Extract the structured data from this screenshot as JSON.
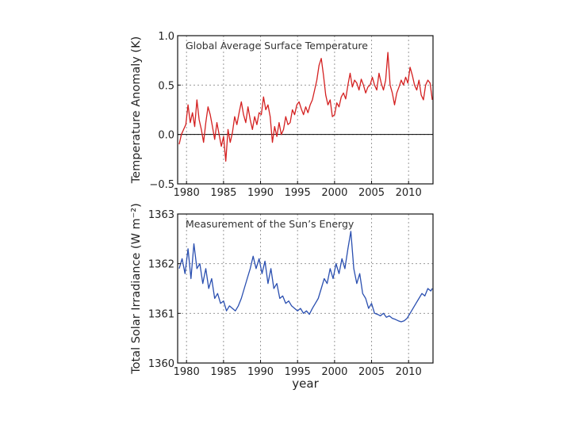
{
  "chart_data": [
    {
      "type": "line",
      "title": "Global Average Surface Temperature",
      "xlabel": "",
      "ylabel": "Temperature Anomaly (K)",
      "xlim": [
        1978.8,
        2013.3
      ],
      "ylim": [
        -0.5,
        1.0
      ],
      "x_ticks": [
        1980,
        1985,
        1990,
        1995,
        2000,
        2005,
        2010
      ],
      "y_ticks": [
        "1.0",
        "0.5",
        "0.0",
        "−0.5"
      ],
      "y_tick_values": [
        1.0,
        0.5,
        0.0,
        -0.5
      ],
      "reference_line": 0.0,
      "grid": true,
      "series": [
        {
          "name": "Temperature Anomaly",
          "color": "#d42020",
          "x": [
            1979.0,
            1979.3,
            1979.6,
            1979.9,
            1980.2,
            1980.5,
            1980.8,
            1981.1,
            1981.4,
            1981.7,
            1982.0,
            1982.3,
            1982.6,
            1982.9,
            1983.2,
            1983.5,
            1983.8,
            1984.1,
            1984.4,
            1984.7,
            1985.0,
            1985.3,
            1985.6,
            1985.9,
            1986.2,
            1986.5,
            1986.8,
            1987.1,
            1987.4,
            1987.7,
            1988.0,
            1988.3,
            1988.6,
            1988.9,
            1989.2,
            1989.5,
            1989.8,
            1990.1,
            1990.4,
            1990.7,
            1991.0,
            1991.3,
            1991.6,
            1991.9,
            1992.2,
            1992.5,
            1992.8,
            1993.1,
            1993.4,
            1993.7,
            1994.0,
            1994.3,
            1994.6,
            1994.9,
            1995.2,
            1995.5,
            1995.8,
            1996.1,
            1996.4,
            1996.7,
            1997.0,
            1997.3,
            1997.6,
            1997.9,
            1998.2,
            1998.5,
            1998.8,
            1999.1,
            1999.4,
            1999.7,
            2000.0,
            2000.3,
            2000.6,
            2000.9,
            2001.2,
            2001.5,
            2001.8,
            2002.1,
            2002.4,
            2002.7,
            2003.0,
            2003.3,
            2003.6,
            2003.9,
            2004.2,
            2004.5,
            2004.8,
            2005.1,
            2005.4,
            2005.7,
            2006.0,
            2006.3,
            2006.6,
            2006.9,
            2007.2,
            2007.5,
            2007.8,
            2008.1,
            2008.4,
            2008.7,
            2009.0,
            2009.3,
            2009.6,
            2009.9,
            2010.2,
            2010.5,
            2010.8,
            2011.1,
            2011.4,
            2011.7,
            2012.0,
            2012.3,
            2012.6,
            2012.9,
            2013.2
          ],
          "values": [
            -0.1,
            0.0,
            0.05,
            0.1,
            0.3,
            0.12,
            0.22,
            0.08,
            0.35,
            0.15,
            0.05,
            -0.08,
            0.12,
            0.28,
            0.2,
            0.08,
            -0.05,
            0.12,
            0.0,
            -0.12,
            -0.02,
            -0.27,
            0.05,
            -0.08,
            0.02,
            0.18,
            0.1,
            0.22,
            0.33,
            0.2,
            0.12,
            0.28,
            0.15,
            0.05,
            0.18,
            0.1,
            0.22,
            0.2,
            0.38,
            0.25,
            0.3,
            0.18,
            -0.08,
            0.08,
            -0.02,
            0.12,
            0.0,
            0.05,
            0.18,
            0.1,
            0.12,
            0.25,
            0.2,
            0.3,
            0.33,
            0.26,
            0.2,
            0.28,
            0.22,
            0.3,
            0.35,
            0.45,
            0.55,
            0.7,
            0.77,
            0.6,
            0.4,
            0.3,
            0.35,
            0.18,
            0.2,
            0.32,
            0.28,
            0.38,
            0.42,
            0.36,
            0.5,
            0.62,
            0.48,
            0.55,
            0.52,
            0.45,
            0.56,
            0.5,
            0.42,
            0.48,
            0.5,
            0.58,
            0.5,
            0.45,
            0.62,
            0.52,
            0.45,
            0.55,
            0.83,
            0.5,
            0.42,
            0.3,
            0.42,
            0.48,
            0.55,
            0.5,
            0.58,
            0.52,
            0.68,
            0.6,
            0.5,
            0.45,
            0.55,
            0.4,
            0.35,
            0.5,
            0.55,
            0.52,
            0.35
          ]
        }
      ]
    },
    {
      "type": "line",
      "title": "Measurement of the Sun’s Energy",
      "xlabel": "year",
      "ylabel": "Total Solar Irradiance (W m⁻²)",
      "xlim": [
        1978.8,
        2013.3
      ],
      "ylim": [
        1360,
        1363
      ],
      "x_ticks": [
        1980,
        1985,
        1990,
        1995,
        2000,
        2005,
        2010
      ],
      "y_ticks": [
        "1363",
        "1362",
        "1361",
        "1360"
      ],
      "y_tick_values": [
        1363,
        1362,
        1361,
        1360
      ],
      "grid": true,
      "series": [
        {
          "name": "Total Solar Irradiance",
          "color": "#2a4fb0",
          "x": [
            1979.0,
            1979.4,
            1979.8,
            1980.2,
            1980.6,
            1981.0,
            1981.4,
            1981.8,
            1982.2,
            1982.6,
            1983.0,
            1983.4,
            1983.8,
            1984.2,
            1984.6,
            1985.0,
            1985.4,
            1985.8,
            1986.2,
            1986.6,
            1987.0,
            1987.4,
            1987.8,
            1988.2,
            1988.6,
            1989.0,
            1989.4,
            1989.8,
            1990.2,
            1990.6,
            1991.0,
            1991.4,
            1991.8,
            1992.2,
            1992.6,
            1993.0,
            1993.4,
            1993.8,
            1994.2,
            1994.6,
            1995.0,
            1995.4,
            1995.8,
            1996.2,
            1996.6,
            1997.0,
            1997.4,
            1997.8,
            1998.2,
            1998.6,
            1999.0,
            1999.4,
            1999.8,
            2000.2,
            2000.6,
            2001.0,
            2001.4,
            2001.8,
            2002.2,
            2002.6,
            2003.0,
            2003.4,
            2003.8,
            2004.2,
            2004.6,
            2005.0,
            2005.4,
            2005.8,
            2006.2,
            2006.6,
            2007.0,
            2007.4,
            2007.8,
            2008.2,
            2008.6,
            2009.0,
            2009.4,
            2009.8,
            2010.2,
            2010.6,
            2011.0,
            2011.4,
            2011.8,
            2012.2,
            2012.6,
            2013.0,
            2013.2
          ],
          "values": [
            1361.9,
            1362.1,
            1361.8,
            1362.3,
            1361.7,
            1362.4,
            1361.9,
            1362.0,
            1361.6,
            1361.9,
            1361.5,
            1361.7,
            1361.3,
            1361.4,
            1361.2,
            1361.25,
            1361.05,
            1361.15,
            1361.1,
            1361.05,
            1361.15,
            1361.3,
            1361.5,
            1361.7,
            1361.9,
            1362.15,
            1361.9,
            1362.1,
            1361.8,
            1362.05,
            1361.6,
            1361.9,
            1361.5,
            1361.6,
            1361.3,
            1361.35,
            1361.2,
            1361.25,
            1361.15,
            1361.1,
            1361.05,
            1361.1,
            1361.0,
            1361.05,
            1360.98,
            1361.1,
            1361.2,
            1361.3,
            1361.5,
            1361.7,
            1361.6,
            1361.9,
            1361.7,
            1362.0,
            1361.8,
            1362.1,
            1361.9,
            1362.3,
            1362.65,
            1361.9,
            1361.6,
            1361.8,
            1361.4,
            1361.3,
            1361.1,
            1361.2,
            1361.0,
            1360.98,
            1360.95,
            1361.0,
            1360.92,
            1360.95,
            1360.9,
            1360.88,
            1360.85,
            1360.83,
            1360.85,
            1360.9,
            1361.0,
            1361.1,
            1361.2,
            1361.3,
            1361.4,
            1361.35,
            1361.5,
            1361.45,
            1361.5
          ]
        }
      ]
    }
  ]
}
